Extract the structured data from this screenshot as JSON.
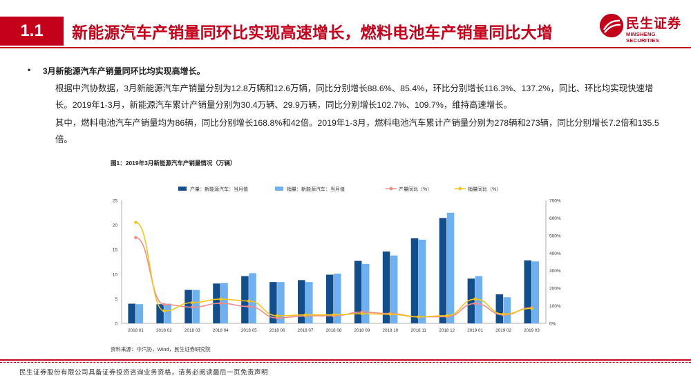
{
  "header": {
    "section_number": "1.1",
    "title": "新能源汽车产销量同环比实现高速增长，燃料电池车产销量同比大增",
    "logo_cn": "民生证券",
    "logo_en": "MINSHENG SECURITIES",
    "brand_color": "#c4001a"
  },
  "body": {
    "bullet": "•",
    "heading": "3月新能源汽车产销量同环比均实现高增长。",
    "paragraph1": "根据中汽协数据，3月新能源汽车产销量分别为12.8万辆和12.6万辆，同比分别增长88.6%、85.4%，环比分别增长116.3%、137.2%，同比、环比均实现快速增长。2019年1-3月，新能源汽车累计产销量分别为30.4万辆、29.9万辆，同比分别增长102.7%、109.7%，维持高速增长。",
    "paragraph2": "其中，燃料电池汽车产销量均为86辆，同比分别增长168.8%和42倍。2019年1-3月，燃料电池汽车累计产销量分别为278辆和273辆，同比分别增长7.2倍和135.5倍。"
  },
  "figure": {
    "caption": "图1：2019年3月新能源汽车产销量情况（万辆）",
    "source": "资料来源：中汽协，Wind，民生证券研究院"
  },
  "chart_data": {
    "type": "bar",
    "categories": [
      "2018 01",
      "2018 02",
      "2018 03",
      "2018 04",
      "2018 05",
      "2018 06",
      "2018 07",
      "2018 08",
      "2018 09",
      "2018 10",
      "2018 11",
      "2018 12",
      "2019 01",
      "2019 02",
      "2019 03"
    ],
    "series": [
      {
        "name": "产量：新能源汽车：当月值",
        "type": "bar",
        "axis": "left",
        "color": "#124e8c",
        "values": [
          4.0,
          3.9,
          6.8,
          8.1,
          9.6,
          8.4,
          8.8,
          9.9,
          12.7,
          14.6,
          17.3,
          21.4,
          9.1,
          5.9,
          12.8
        ]
      },
      {
        "name": "销量：新能源汽车：当月值",
        "type": "bar",
        "axis": "left",
        "color": "#6fb1f0",
        "values": [
          3.9,
          4.0,
          6.8,
          8.2,
          10.2,
          8.4,
          8.4,
          10.1,
          12.1,
          13.8,
          17.0,
          22.5,
          9.6,
          5.3,
          12.6
        ]
      },
      {
        "name": "产量同比（%）",
        "type": "line",
        "axis": "right",
        "color": "#f08c8c",
        "values": [
          488,
          108,
          92,
          114,
          96,
          31,
          42,
          43,
          64,
          56,
          37,
          38,
          113,
          48,
          89
        ]
      },
      {
        "name": "销量同比（%）",
        "type": "line",
        "axis": "right",
        "color": "#f5c518",
        "values": [
          575,
          71,
          118,
          138,
          127,
          43,
          48,
          49,
          55,
          52,
          37,
          44,
          138,
          53,
          85
        ]
      }
    ],
    "y_left_ticks": [
      "0",
      "5",
      "10",
      "15",
      "20",
      "25"
    ],
    "y_right_ticks": [
      "0%",
      "100%",
      "200%",
      "300%",
      "400%",
      "500%",
      "600%",
      "700%"
    ],
    "ylim_left": [
      0,
      25
    ],
    "ylim_right": [
      0,
      700
    ],
    "legend_position": "top",
    "grid": false
  },
  "footer": {
    "disclaimer": "民生证券股份有限公司具备证券投资咨询业务资格，请务必阅读最后一页免责声明"
  }
}
